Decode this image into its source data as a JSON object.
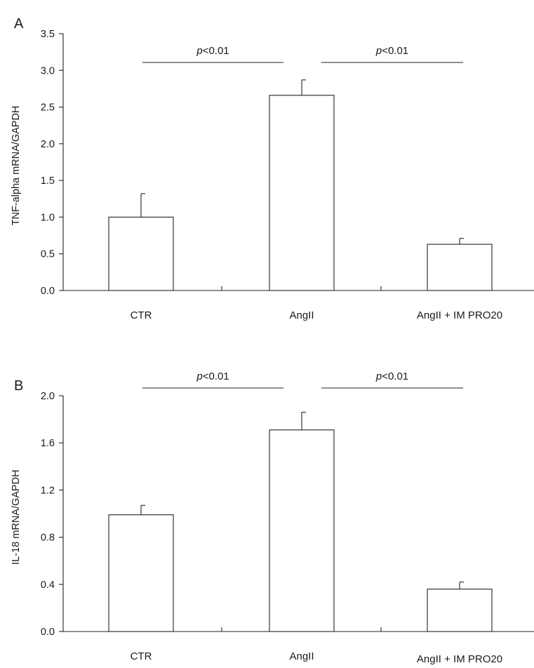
{
  "chart_data": [
    {
      "type": "bar",
      "panel_label": "A",
      "categories": [
        "CTR",
        "AngII",
        "AngII + IM PRO20"
      ],
      "values": [
        1.0,
        2.66,
        0.63
      ],
      "error": [
        0.32,
        0.21,
        0.08
      ],
      "ylabel": "TNF-alpha mRNA/GAPDH",
      "ylim": [
        0,
        3.5
      ],
      "yticks": [
        "0.0",
        "0.5",
        "1.0",
        "1.5",
        "2.0",
        "2.5",
        "3.0",
        "3.5"
      ],
      "annotations": [
        {
          "text": "p<0.01",
          "from": "CTR",
          "to": "AngII"
        },
        {
          "text": "p<0.01",
          "from": "AngII",
          "to": "AngII + IM PRO20"
        }
      ]
    },
    {
      "type": "bar",
      "panel_label": "B",
      "categories": [
        "CTR",
        "AngII",
        "AngII + IM PRO20"
      ],
      "values": [
        0.99,
        1.71,
        0.36
      ],
      "error": [
        0.08,
        0.15,
        0.06
      ],
      "ylabel": "IL-18 mRNA/GAPDH",
      "ylim": [
        0,
        2.0
      ],
      "yticks": [
        "0.0",
        "0.4",
        "0.8",
        "1.2",
        "1.6",
        "2.0"
      ],
      "annotations": [
        {
          "text": "p<0.01",
          "from": "CTR",
          "to": "AngII"
        },
        {
          "text": "p<0.01",
          "from": "AngII",
          "to": "AngII + IM PRO20"
        }
      ]
    }
  ]
}
